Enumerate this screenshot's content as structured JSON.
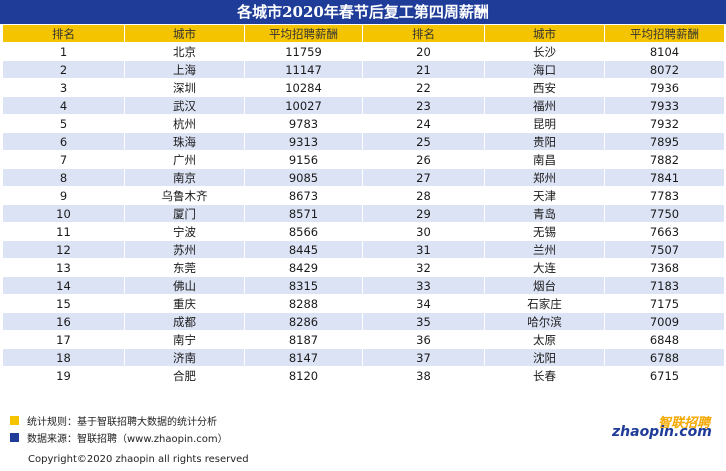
{
  "title": "各城市2020年春节后复工第四周薪酬",
  "headers": [
    "排名",
    "城市",
    "平均招聘薪酬",
    "排名",
    "城市",
    "平均招聘薪酬"
  ],
  "rows": [
    [
      "1",
      "北京",
      "11759",
      "20",
      "长沙",
      "8104"
    ],
    [
      "2",
      "上海",
      "11147",
      "21",
      "海口",
      "8072"
    ],
    [
      "3",
      "深圳",
      "10284",
      "22",
      "西安",
      "7936"
    ],
    [
      "4",
      "武汉",
      "10027",
      "23",
      "福州",
      "7933"
    ],
    [
      "5",
      "杭州",
      "9783",
      "24",
      "昆明",
      "7932"
    ],
    [
      "6",
      "珠海",
      "9313",
      "25",
      "贵阳",
      "7895"
    ],
    [
      "7",
      "广州",
      "9156",
      "26",
      "南昌",
      "7882"
    ],
    [
      "8",
      "南京",
      "9085",
      "27",
      "郑州",
      "7841"
    ],
    [
      "9",
      "乌鲁木齐",
      "8673",
      "28",
      "天津",
      "7783"
    ],
    [
      "10",
      "厦门",
      "8571",
      "29",
      "青岛",
      "7750"
    ],
    [
      "11",
      "宁波",
      "8566",
      "30",
      "无锡",
      "7663"
    ],
    [
      "12",
      "苏州",
      "8445",
      "31",
      "兰州",
      "7507"
    ],
    [
      "13",
      "东莞",
      "8429",
      "32",
      "大连",
      "7368"
    ],
    [
      "14",
      "佛山",
      "8315",
      "33",
      "烟台",
      "7183"
    ],
    [
      "15",
      "重庆",
      "8288",
      "34",
      "石家庄",
      "7175"
    ],
    [
      "16",
      "成都",
      "8286",
      "35",
      "哈尔滨",
      "7009"
    ],
    [
      "17",
      "南宁",
      "8187",
      "36",
      "太原",
      "6848"
    ],
    [
      "18",
      "济南",
      "8147",
      "37",
      "沈阳",
      "6788"
    ],
    [
      "19",
      "合肥",
      "8120",
      "38",
      "长春",
      "6715"
    ]
  ],
  "notes": {
    "rule": "统计规则：基于智联招聘大数据的统计分析",
    "source": "数据来源：智联招聘（www.zhaopin.com）"
  },
  "copyright": "Copyright©2020 zhaopin all rights reserved",
  "logo": {
    "cn": "智联招聘",
    "en": "zhaopin.com"
  },
  "colors": {
    "header_bg": "#1f3c99",
    "column_header_bg": "#f5c400",
    "stripe": "#dce3f5"
  }
}
